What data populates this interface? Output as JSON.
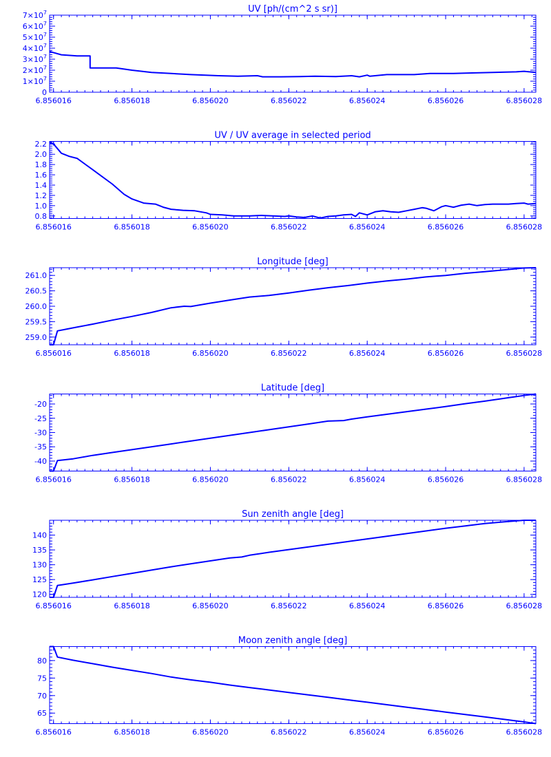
{
  "style": {
    "color": "#0000ff",
    "background": "#ffffff"
  },
  "chart_data": [
    {
      "type": "line",
      "title": "UV [ph/(cm^2 s sr)]",
      "xlim": [
        6.8560159,
        6.8560283
      ],
      "x_ticks": [
        "6.856016",
        "6.856018",
        "6.856020",
        "6.856022",
        "6.856024",
        "6.856026",
        "6.856028"
      ],
      "x_tick_values": [
        6.856016,
        6.856018,
        6.85602,
        6.856022,
        6.856024,
        6.856026,
        6.856028
      ],
      "ylim": [
        0,
        70000000
      ],
      "y_ticks": [
        {
          "v": 0,
          "mant": "0",
          "exp": ""
        },
        {
          "v": 10000000,
          "mant": "1×10",
          "exp": "7"
        },
        {
          "v": 20000000,
          "mant": "2×10",
          "exp": "7"
        },
        {
          "v": 30000000,
          "mant": "3×10",
          "exp": "7"
        },
        {
          "v": 40000000,
          "mant": "4×10",
          "exp": "7"
        },
        {
          "v": 50000000,
          "mant": "5×10",
          "exp": "7"
        },
        {
          "v": 60000000,
          "mant": "6×10",
          "exp": "7"
        },
        {
          "v": 70000000,
          "mant": "7×10",
          "exp": "7"
        }
      ],
      "series": [
        {
          "x": [
            6.8560159,
            6.8560162,
            6.8560166,
            6.856016933,
            6.856016933,
            6.8560176,
            6.856018,
            6.8560185,
            6.856019,
            6.8560195,
            6.8560202,
            6.8560207,
            6.8560212,
            6.856021333,
            6.8560218,
            6.8560223,
            6.856022667,
            6.8560232,
            6.8560236,
            6.8560238,
            6.856024,
            6.856024067,
            6.8560245,
            6.8560252,
            6.8560256,
            6.8560262,
            6.856026667,
            6.8560272,
            6.8560278,
            6.856028,
            6.8560283
          ],
          "y": [
            37000000,
            34000000,
            33000000,
            33000000,
            22000000,
            22000000,
            20000000,
            18000000,
            17000000,
            16000000,
            15000000,
            14500000,
            15000000,
            14000000,
            14000000,
            14200000,
            14500000,
            14200000,
            15000000,
            14000000,
            15500000,
            14500000,
            16000000,
            16000000,
            17000000,
            17000000,
            17500000,
            18000000,
            18500000,
            19000000,
            18000000
          ]
        }
      ]
    },
    {
      "type": "line",
      "title": "UV / UV average in selected period",
      "xlim": [
        6.8560159,
        6.8560283
      ],
      "x_ticks": [
        "6.856016",
        "6.856018",
        "6.856020",
        "6.856022",
        "6.856024",
        "6.856026",
        "6.856028"
      ],
      "x_tick_values": [
        6.856016,
        6.856018,
        6.85602,
        6.856022,
        6.856024,
        6.856026,
        6.856028
      ],
      "ylim": [
        0.75,
        2.25
      ],
      "y_ticks": [
        {
          "v": 0.8,
          "mant": "0.8",
          "exp": ""
        },
        {
          "v": 1.0,
          "mant": "1.0",
          "exp": ""
        },
        {
          "v": 1.2,
          "mant": "1.2",
          "exp": ""
        },
        {
          "v": 1.4,
          "mant": "1.4",
          "exp": ""
        },
        {
          "v": 1.6,
          "mant": "1.6",
          "exp": ""
        },
        {
          "v": 1.8,
          "mant": "1.8",
          "exp": ""
        },
        {
          "v": 2.0,
          "mant": "2.0",
          "exp": ""
        },
        {
          "v": 2.2,
          "mant": "2.2",
          "exp": ""
        }
      ],
      "series": [
        {
          "x": [
            6.8560159,
            6.856016,
            6.8560162,
            6.8560164,
            6.8560166,
            6.856017,
            6.8560175,
            6.8560178,
            6.856018,
            6.8560183,
            6.8560186,
            6.8560188,
            6.856019,
            6.8560193,
            6.8560196,
            6.8560199,
            6.85602,
            6.8560203,
            6.8560206,
            6.8560209,
            6.856021,
            6.8560213,
            6.8560216,
            6.8560219,
            6.856022,
            6.8560222,
            6.8560224,
            6.8560226,
            6.8560228,
            6.856023,
            6.8560232,
            6.8560234,
            6.8560236,
            6.8560237,
            6.8560238,
            6.856024,
            6.8560242,
            6.8560244,
            6.8560246,
            6.8560248,
            6.856025,
            6.8560252,
            6.8560254,
            6.8560255,
            6.8560257,
            6.8560259,
            6.856026,
            6.8560262,
            6.8560264,
            6.8560266,
            6.8560268,
            6.856027,
            6.8560272,
            6.8560274,
            6.8560276,
            6.8560278,
            6.856028,
            6.8560281,
            6.8560283
          ],
          "y": [
            2.23,
            2.2,
            2.02,
            1.96,
            1.92,
            1.7,
            1.42,
            1.22,
            1.13,
            1.05,
            1.03,
            0.97,
            0.93,
            0.91,
            0.9,
            0.86,
            0.83,
            0.82,
            0.8,
            0.8,
            0.8,
            0.81,
            0.8,
            0.79,
            0.8,
            0.78,
            0.77,
            0.8,
            0.76,
            0.79,
            0.8,
            0.82,
            0.83,
            0.79,
            0.86,
            0.82,
            0.88,
            0.9,
            0.88,
            0.87,
            0.9,
            0.93,
            0.96,
            0.95,
            0.9,
            0.98,
            1.0,
            0.97,
            1.01,
            1.03,
            1.0,
            1.02,
            1.03,
            1.03,
            1.03,
            1.04,
            1.05,
            1.03,
            1.04
          ]
        }
      ]
    },
    {
      "type": "line",
      "title": "Longitude [deg]",
      "xlim": [
        6.8560159,
        6.8560283
      ],
      "x_ticks": [
        "6.856016",
        "6.856018",
        "6.856020",
        "6.856022",
        "6.856024",
        "6.856026",
        "6.856028"
      ],
      "x_tick_values": [
        6.856016,
        6.856018,
        6.85602,
        6.856022,
        6.856024,
        6.856026,
        6.856028
      ],
      "ylim": [
        258.75,
        261.25
      ],
      "y_ticks": [
        {
          "v": 259.0,
          "mant": "259.0",
          "exp": ""
        },
        {
          "v": 259.5,
          "mant": "259.5",
          "exp": ""
        },
        {
          "v": 260.0,
          "mant": "260.0",
          "exp": ""
        },
        {
          "v": 260.5,
          "mant": "260.5",
          "exp": ""
        },
        {
          "v": 261.0,
          "mant": "261.0",
          "exp": ""
        }
      ],
      "series": [
        {
          "x": [
            6.8560159,
            6.856016,
            6.8560161,
            6.8560163,
            6.8560165,
            6.856017,
            6.8560175,
            6.856018,
            6.8560185,
            6.856019,
            6.856019333,
            6.8560195,
            6.85602,
            6.8560205,
            6.856021,
            6.8560215,
            6.856022,
            6.8560225,
            6.856023,
            6.8560235,
            6.856024,
            6.8560245,
            6.856025,
            6.8560255,
            6.856026,
            6.8560265,
            6.856027,
            6.8560275,
            6.856028,
            6.8560283
          ],
          "y": [
            258.75,
            258.75,
            259.2,
            259.25,
            259.3,
            259.42,
            259.55,
            259.67,
            259.8,
            259.95,
            260.0,
            259.99,
            260.1,
            260.2,
            260.3,
            260.35,
            260.43,
            260.52,
            260.6,
            260.67,
            260.75,
            260.82,
            260.88,
            260.95,
            261.0,
            261.07,
            261.12,
            261.18,
            261.24,
            261.25
          ]
        }
      ]
    },
    {
      "type": "line",
      "title": "Latitude [deg]",
      "xlim": [
        6.8560159,
        6.8560283
      ],
      "x_ticks": [
        "6.856016",
        "6.856018",
        "6.856020",
        "6.856022",
        "6.856024",
        "6.856026",
        "6.856028"
      ],
      "x_tick_values": [
        6.856016,
        6.856018,
        6.85602,
        6.856022,
        6.856024,
        6.856026,
        6.856028
      ],
      "ylim": [
        -43.5,
        -16.5
      ],
      "y_ticks": [
        {
          "v": -40,
          "mant": "-40",
          "exp": ""
        },
        {
          "v": -35,
          "mant": "-35",
          "exp": ""
        },
        {
          "v": -30,
          "mant": "-30",
          "exp": ""
        },
        {
          "v": -25,
          "mant": "-25",
          "exp": ""
        },
        {
          "v": -20,
          "mant": "-20",
          "exp": ""
        }
      ],
      "series": [
        {
          "x": [
            6.8560159,
            6.856016,
            6.8560161,
            6.8560165,
            6.856017,
            6.8560175,
            6.856018,
            6.8560185,
            6.856019,
            6.8560195,
            6.85602,
            6.8560205,
            6.856021,
            6.8560215,
            6.856022,
            6.8560225,
            6.856023,
            6.8560234,
            6.8560236,
            6.856024,
            6.8560245,
            6.856025,
            6.8560255,
            6.856026,
            6.8560265,
            6.856027,
            6.8560275,
            6.856028,
            6.8560283
          ],
          "y": [
            -43.5,
            -43.5,
            -39.8,
            -39.2,
            -38.0,
            -37.0,
            -36.0,
            -35.0,
            -34.0,
            -33.0,
            -32.0,
            -31.0,
            -30.0,
            -29.0,
            -28.0,
            -27.0,
            -26.0,
            -25.8,
            -25.3,
            -24.5,
            -23.6,
            -22.7,
            -21.8,
            -20.9,
            -19.9,
            -19.0,
            -18.0,
            -17.0,
            -16.5
          ]
        }
      ]
    },
    {
      "type": "line",
      "title": "Sun zenith angle [deg]",
      "xlim": [
        6.8560159,
        6.8560283
      ],
      "x_ticks": [
        "6.856016",
        "6.856018",
        "6.856020",
        "6.856022",
        "6.856024",
        "6.856026",
        "6.856028"
      ],
      "x_tick_values": [
        6.856016,
        6.856018,
        6.85602,
        6.856022,
        6.856024,
        6.856026,
        6.856028
      ],
      "ylim": [
        119,
        145
      ],
      "y_ticks": [
        {
          "v": 120,
          "mant": "120",
          "exp": ""
        },
        {
          "v": 125,
          "mant": "125",
          "exp": ""
        },
        {
          "v": 130,
          "mant": "130",
          "exp": ""
        },
        {
          "v": 135,
          "mant": "135",
          "exp": ""
        },
        {
          "v": 140,
          "mant": "140",
          "exp": ""
        }
      ],
      "series": [
        {
          "x": [
            6.8560159,
            6.856016,
            6.8560161,
            6.8560165,
            6.856017,
            6.8560175,
            6.856018,
            6.8560185,
            6.856019,
            6.8560195,
            6.85602,
            6.8560205,
            6.8560208,
            6.856021,
            6.8560215,
            6.856022,
            6.8560225,
            6.856023,
            6.8560235,
            6.856024,
            6.8560245,
            6.856025,
            6.8560255,
            6.856026,
            6.8560265,
            6.856027,
            6.8560275,
            6.856028,
            6.8560283
          ],
          "y": [
            119.0,
            119.0,
            123.0,
            123.8,
            124.9,
            126.0,
            127.1,
            128.2,
            129.3,
            130.3,
            131.3,
            132.3,
            132.6,
            133.2,
            134.2,
            135.1,
            136.0,
            136.9,
            137.8,
            138.7,
            139.6,
            140.5,
            141.4,
            142.3,
            143.1,
            143.9,
            144.5,
            145.0,
            145.0
          ]
        }
      ]
    },
    {
      "type": "line",
      "title": "Moon zenith angle [deg]",
      "xlim": [
        6.8560159,
        6.8560283
      ],
      "x_ticks": [
        "6.856016",
        "6.856018",
        "6.856020",
        "6.856022",
        "6.856024",
        "6.856026",
        "6.856028"
      ],
      "x_tick_values": [
        6.856016,
        6.856018,
        6.85602,
        6.856022,
        6.856024,
        6.856026,
        6.856028
      ],
      "ylim": [
        62,
        84
      ],
      "y_ticks": [
        {
          "v": 65,
          "mant": "65",
          "exp": ""
        },
        {
          "v": 70,
          "mant": "70",
          "exp": ""
        },
        {
          "v": 75,
          "mant": "75",
          "exp": ""
        },
        {
          "v": 80,
          "mant": "80",
          "exp": ""
        }
      ],
      "series": [
        {
          "x": [
            6.8560159,
            6.856016,
            6.8560161,
            6.8560165,
            6.856017,
            6.8560175,
            6.856018,
            6.8560185,
            6.856019,
            6.8560195,
            6.85602,
            6.8560205,
            6.856021,
            6.8560215,
            6.856022,
            6.8560225,
            6.856023,
            6.8560235,
            6.856024,
            6.8560245,
            6.856025,
            6.8560255,
            6.856026,
            6.8560265,
            6.856027,
            6.8560275,
            6.856028,
            6.8560283
          ],
          "y": [
            84.0,
            84.0,
            81.0,
            80.1,
            79.1,
            78.1,
            77.2,
            76.3,
            75.3,
            74.5,
            73.8,
            73.0,
            72.3,
            71.6,
            70.9,
            70.2,
            69.5,
            68.8,
            68.1,
            67.4,
            66.7,
            66.0,
            65.3,
            64.6,
            63.9,
            63.2,
            62.5,
            62.0
          ]
        }
      ]
    }
  ]
}
